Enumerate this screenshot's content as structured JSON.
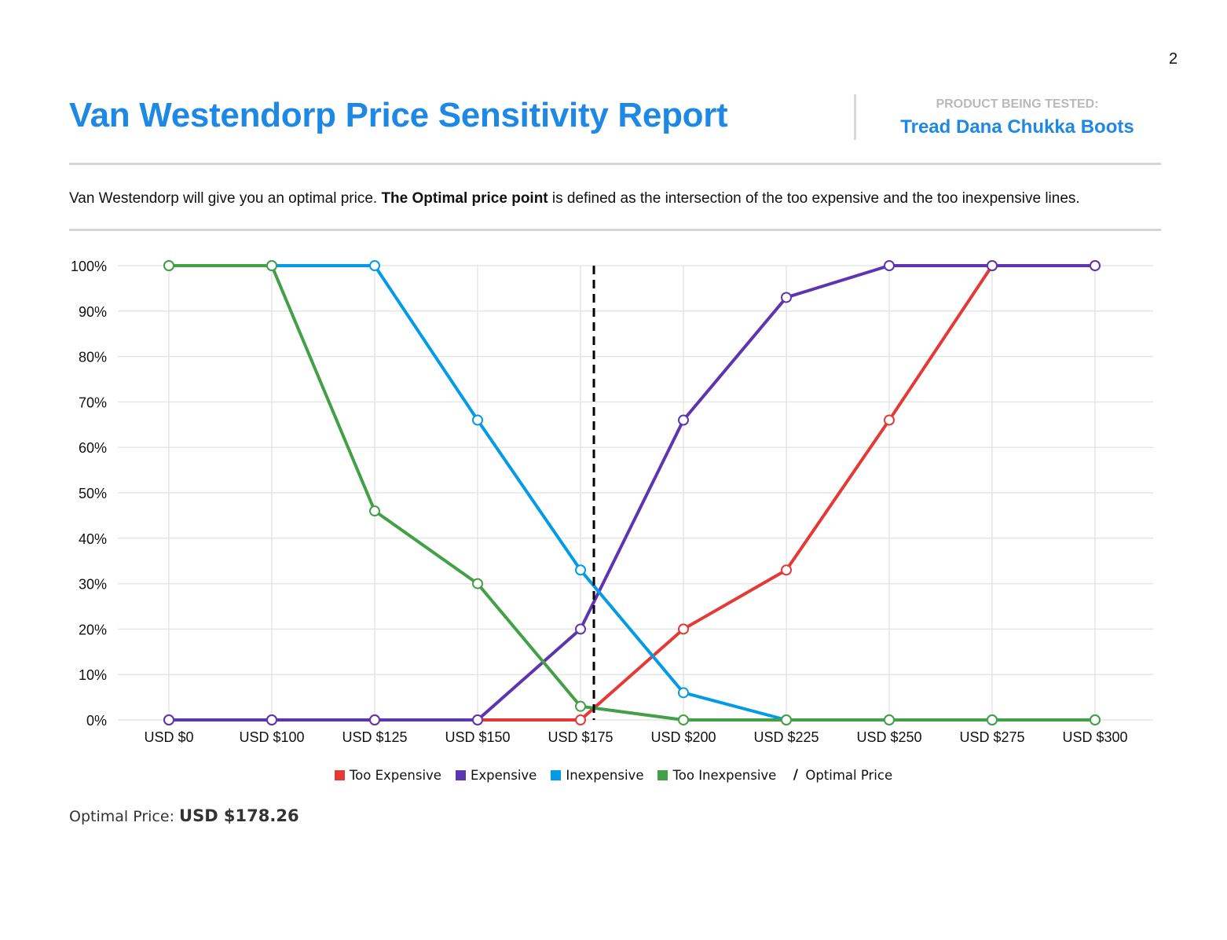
{
  "page": {
    "number": "2"
  },
  "header": {
    "title": "Van Westendorp Price Sensitivity Report",
    "product_label": "PRODUCT BEING TESTED:",
    "product_name": "Tread Dana Chukka Boots"
  },
  "description": {
    "text_before": "Van Westendorp will give you an optimal price. ",
    "bold": "The Optimal price point",
    "text_after": " is defined as the intersection of the too expensive and the too inexpensive lines."
  },
  "chart_data": {
    "type": "line",
    "title": "",
    "xlabel": "",
    "ylabel": "",
    "categories": [
      "USD $0",
      "USD $100",
      "USD $125",
      "USD $150",
      "USD $175",
      "USD $200",
      "USD $225",
      "USD $250",
      "USD $275",
      "USD $300"
    ],
    "ylim": [
      0,
      100
    ],
    "yticks": [
      "0%",
      "10%",
      "20%",
      "30%",
      "40%",
      "50%",
      "60%",
      "70%",
      "80%",
      "90%",
      "100%"
    ],
    "grid": true,
    "legend_position": "bottom-center",
    "series": [
      {
        "name": "Too Expensive",
        "key": "too-expensive",
        "color": "#e53935",
        "values": [
          0,
          0,
          0,
          0,
          0,
          20,
          33,
          66,
          100,
          100
        ]
      },
      {
        "name": "Expensive",
        "key": "expensive",
        "color": "#5e35b1",
        "values": [
          0,
          0,
          0,
          0,
          20,
          66,
          93,
          100,
          100,
          100
        ]
      },
      {
        "name": "Inexpensive",
        "key": "inexpensive",
        "color": "#039be5",
        "values": [
          100,
          100,
          100,
          66,
          33,
          6,
          0,
          0,
          0,
          0
        ]
      },
      {
        "name": "Too Inexpensive",
        "key": "too-inexpensive",
        "color": "#43a047",
        "values": [
          100,
          100,
          46,
          30,
          3,
          0,
          0,
          0,
          0,
          0
        ]
      }
    ],
    "optimal_line": {
      "name": "Optimal Price",
      "category_position": 4.13,
      "color": "#000000"
    }
  },
  "footer": {
    "optimal_label": "Optimal Price:",
    "optimal_value": "USD $178.26"
  }
}
